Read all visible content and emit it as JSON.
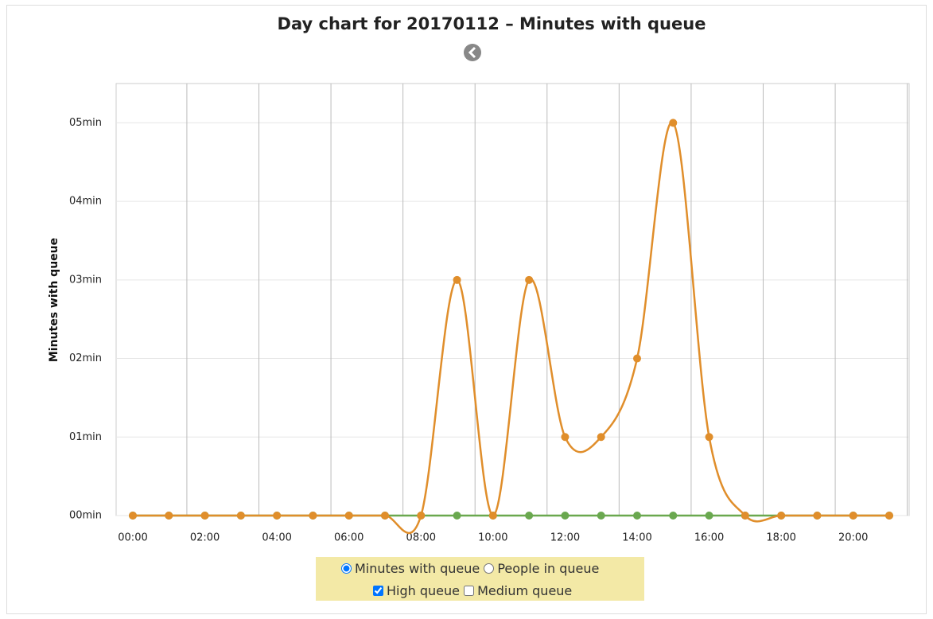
{
  "chart_data": {
    "type": "line",
    "title": "Day chart for 20170112 – Minutes with queue",
    "y_label": "Minutes with queue",
    "categories": [
      "00:00",
      null,
      "02:00",
      null,
      "04:00",
      null,
      "06:00",
      null,
      "08:00",
      null,
      "10:00",
      null,
      "12:00",
      null,
      "14:00",
      null,
      "16:00",
      null,
      "18:00",
      null,
      "20:00",
      null
    ],
    "series": [
      {
        "color": "#6aa84f",
        "values": [
          0,
          0,
          0,
          0,
          0,
          0,
          0,
          0,
          0,
          0,
          0,
          0,
          0,
          0,
          0,
          0,
          0,
          0,
          0,
          0,
          0,
          0
        ]
      },
      {
        "color": "#e08e2b",
        "values": [
          0,
          0,
          0,
          0,
          0,
          0,
          0,
          0,
          0,
          3,
          0,
          3,
          1,
          1,
          2,
          5,
          1,
          0,
          0,
          0,
          0,
          0
        ]
      }
    ],
    "ylim": [
      0,
      5.5
    ],
    "yticks": [
      {
        "value": 0,
        "label": "00min"
      },
      {
        "value": 1,
        "label": "01min"
      },
      {
        "value": 2,
        "label": "02min"
      },
      {
        "value": 3,
        "label": "03min"
      },
      {
        "value": 4,
        "label": "04min"
      },
      {
        "value": 5,
        "label": "05min"
      }
    ],
    "grid": true
  },
  "controls": {
    "radios": [
      "Minutes with queue",
      "People in queue"
    ],
    "checkboxes": [
      "High queue",
      "Medium queue"
    ]
  }
}
